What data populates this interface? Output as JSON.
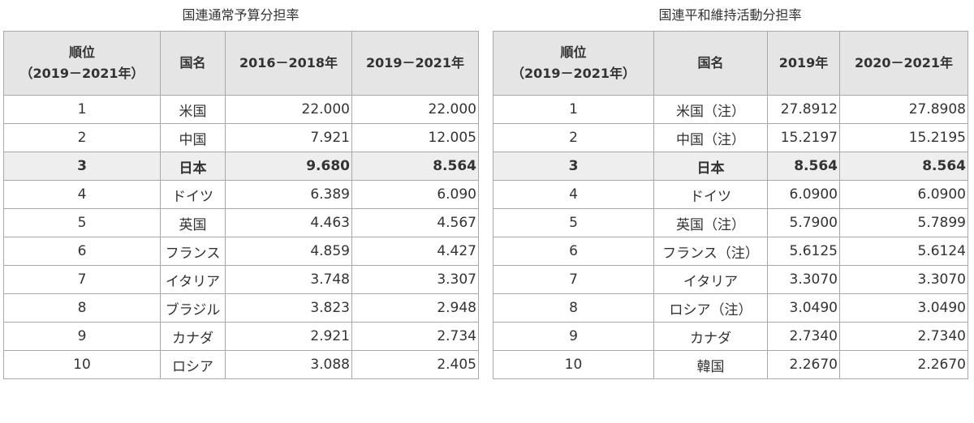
{
  "left_table": {
    "caption": "国連通常予算分担率",
    "headers": {
      "rank_line1": "順位",
      "rank_line2": "（2019－2021年）",
      "country": "国名",
      "col1": "2016－2018年",
      "col2": "2019－2021年"
    },
    "rows": [
      {
        "rank": "1",
        "country": "米国",
        "v1": "22.000",
        "v2": "22.000"
      },
      {
        "rank": "2",
        "country": "中国",
        "v1": "7.921",
        "v2": "12.005"
      },
      {
        "rank": "3",
        "country": "日本",
        "v1": "9.680",
        "v2": "8.564"
      },
      {
        "rank": "4",
        "country": "ドイツ",
        "v1": "6.389",
        "v2": "6.090"
      },
      {
        "rank": "5",
        "country": "英国",
        "v1": "4.463",
        "v2": "4.567"
      },
      {
        "rank": "6",
        "country": "フランス",
        "v1": "4.859",
        "v2": "4.427"
      },
      {
        "rank": "7",
        "country": "イタリア",
        "v1": "3.748",
        "v2": "3.307"
      },
      {
        "rank": "8",
        "country": "ブラジル",
        "v1": "3.823",
        "v2": "2.948"
      },
      {
        "rank": "9",
        "country": "カナダ",
        "v1": "2.921",
        "v2": "2.734"
      },
      {
        "rank": "10",
        "country": "ロシア",
        "v1": "3.088",
        "v2": "2.405"
      }
    ]
  },
  "right_table": {
    "caption": "国連平和維持活動分担率",
    "headers": {
      "rank_line1": "順位",
      "rank_line2": "（2019－2021年）",
      "country": "国名",
      "col1": "2019年",
      "col2": "2020－2021年"
    },
    "rows": [
      {
        "rank": "1",
        "country": "米国（注）",
        "v1": "27.8912",
        "v2": "27.8908"
      },
      {
        "rank": "2",
        "country": "中国（注）",
        "v1": "15.2197",
        "v2": "15.2195"
      },
      {
        "rank": "3",
        "country": "日本",
        "v1": "8.564",
        "v2": "8.564"
      },
      {
        "rank": "4",
        "country": "ドイツ",
        "v1": "6.0900",
        "v2": "6.0900"
      },
      {
        "rank": "5",
        "country": "英国（注）",
        "v1": "5.7900",
        "v2": "5.7899"
      },
      {
        "rank": "6",
        "country": "フランス（注）",
        "v1": "5.6125",
        "v2": "5.6124"
      },
      {
        "rank": "7",
        "country": "イタリア",
        "v1": "3.3070",
        "v2": "3.3070"
      },
      {
        "rank": "8",
        "country": "ロシア（注）",
        "v1": "3.0490",
        "v2": "3.0490"
      },
      {
        "rank": "9",
        "country": "カナダ",
        "v1": "2.7340",
        "v2": "2.7340"
      },
      {
        "rank": "10",
        "country": "韓国",
        "v1": "2.2670",
        "v2": "2.2670"
      }
    ]
  },
  "highlight_rank": "3",
  "colors": {
    "header_bg": "#e5e5e5",
    "highlight_bg": "#eeeeee",
    "border": "#a9a9a9",
    "text": "#333333"
  }
}
